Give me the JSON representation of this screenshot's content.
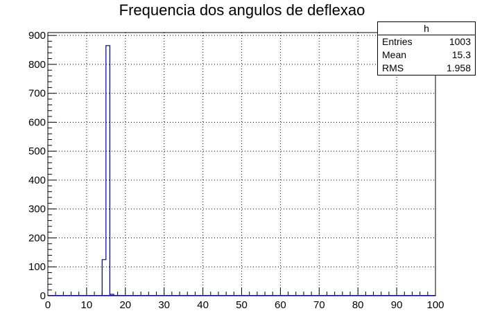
{
  "chart_data": {
    "type": "bar",
    "title": "Frequencia dos angulos de deflexao",
    "xlabel": "",
    "ylabel": "",
    "xlim": [
      0,
      100
    ],
    "ylim": [
      0,
      910
    ],
    "grid": true,
    "x_ticks": [
      0,
      10,
      20,
      30,
      40,
      50,
      60,
      70,
      80,
      90,
      100
    ],
    "y_ticks": [
      0,
      100,
      200,
      300,
      400,
      500,
      600,
      700,
      800,
      900
    ],
    "bin_width": 1,
    "bins": [
      {
        "x0": 14,
        "x1": 15,
        "value": 125
      },
      {
        "x0": 15,
        "x1": 16,
        "value": 865
      },
      {
        "x0": 16,
        "x1": 17,
        "value": 5
      }
    ],
    "line_color": "#000080"
  },
  "stats_box": {
    "name": "h",
    "rows": [
      {
        "key": "Entries",
        "value": "1003"
      },
      {
        "key": "Mean",
        "value": "15.3"
      },
      {
        "key": "RMS",
        "value": "1.958"
      }
    ]
  }
}
